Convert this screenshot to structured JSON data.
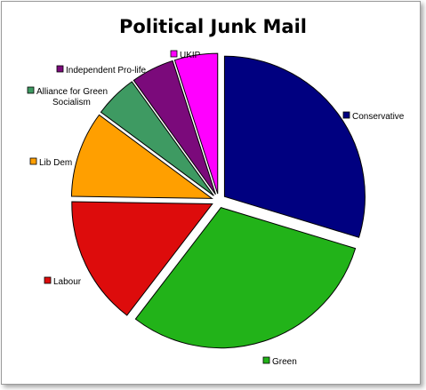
{
  "chart_data": {
    "type": "pie",
    "title": "Political Junk Mail",
    "slices": [
      {
        "label": "Conservative",
        "value": 30,
        "color": "#000080"
      },
      {
        "label": "Green",
        "value": 31,
        "color": "#22b319"
      },
      {
        "label": "Labour",
        "value": 15,
        "color": "#dd0c0c"
      },
      {
        "label": "Lib Dem",
        "value": 10,
        "color": "#ff9f00"
      },
      {
        "label": "Alliance for Green Socialism",
        "value": 5,
        "color": "#3e9a62"
      },
      {
        "label": "Independent Pro-life",
        "value": 5,
        "color": "#7b0a7b"
      },
      {
        "label": "UKIP",
        "value": 5,
        "color": "#ff00ff"
      }
    ],
    "legend": "labels-around-pie",
    "exploded": true
  }
}
